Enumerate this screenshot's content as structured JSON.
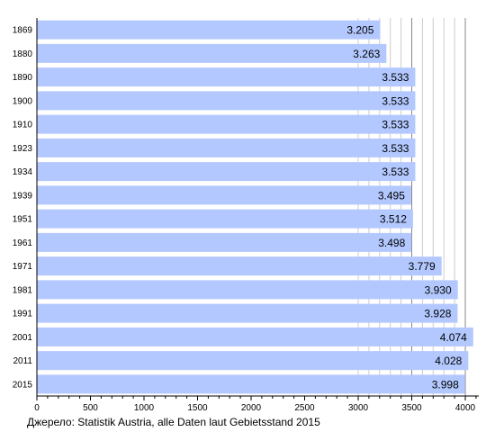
{
  "chart_data": {
    "type": "bar",
    "orientation": "horizontal",
    "categories": [
      "1869",
      "1880",
      "1890",
      "1900",
      "1910",
      "1923",
      "1934",
      "1939",
      "1951",
      "1961",
      "1971",
      "1981",
      "1991",
      "2001",
      "2011",
      "2015"
    ],
    "values": [
      3205,
      3263,
      3533,
      3533,
      3533,
      3533,
      3533,
      3495,
      3512,
      3498,
      3779,
      3930,
      3928,
      4074,
      4028,
      3998
    ],
    "value_labels": [
      "3.205",
      "3.263",
      "3.533",
      "3.533",
      "3.533",
      "3.533",
      "3.533",
      "3.495",
      "3.512",
      "3.498",
      "3.779",
      "3.930",
      "3.928",
      "4.074",
      "4.028",
      "3.998"
    ],
    "x_ticks": [
      "0",
      "500",
      "1000",
      "1500",
      "2000",
      "2500",
      "3000",
      "3500",
      "4000"
    ],
    "xlim": [
      0,
      4100
    ],
    "grid": "vertical lines at 3000–4000 (every 100)",
    "bar_color": "#b3c8ff",
    "title": "",
    "xlabel": "",
    "ylabel": ""
  },
  "source": "Джерело: Statistik Austria, alle Daten laut Gebietsstand 2015"
}
